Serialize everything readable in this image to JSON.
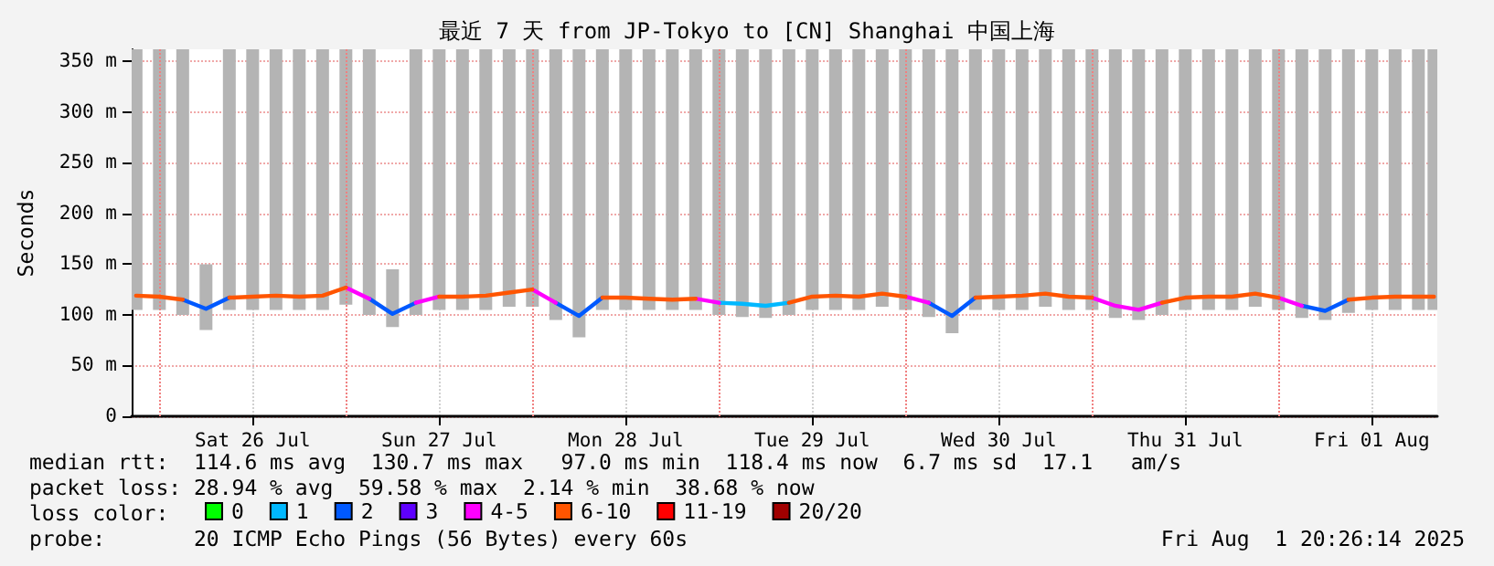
{
  "chart_data": {
    "type": "line",
    "title": "最近 7 天 from JP-Tokyo to [CN] Shanghai 中国上海",
    "ylabel": "Seconds",
    "legend_title": "loss color:",
    "legend": "bottom",
    "grid": true,
    "marker": "none",
    "line_style": "solid",
    "xlim": [
      "2025-07-25T20:26",
      "2025-08-01T20:26"
    ],
    "xticks": [
      {
        "value": "2025-07-26T12:00",
        "label": "Sat 26 Jul"
      },
      {
        "value": "2025-07-27T12:00",
        "label": "Sun 27 Jul"
      },
      {
        "value": "2025-07-28T12:00",
        "label": "Mon 28 Jul"
      },
      {
        "value": "2025-07-29T12:00",
        "label": "Tue 29 Jul"
      },
      {
        "value": "2025-07-30T12:00",
        "label": "Wed 30 Jul"
      },
      {
        "value": "2025-07-31T12:00",
        "label": "Thu 31 Jul"
      },
      {
        "value": "2025-08-01T12:00",
        "label": "Fri 01 Aug"
      }
    ],
    "ylim": [
      0,
      362
    ],
    "yticks": [
      0,
      {
        "value": 50,
        "label": "50 m"
      },
      {
        "value": 100,
        "label": "100 m"
      },
      {
        "value": 150,
        "label": "150 m"
      },
      {
        "value": 200,
        "label": "200 m"
      },
      {
        "value": 250,
        "label": "250 m"
      },
      {
        "value": 300,
        "label": "300 m"
      },
      {
        "value": 350,
        "label": "350 m"
      }
    ],
    "ref_lines": [
      {
        "axis": "x",
        "value": "2025-07-26T00:00",
        "color": "#f08080",
        "line_style": "dotted"
      },
      {
        "axis": "x",
        "value": "2025-07-27T00:00",
        "color": "#f08080",
        "line_style": "dotted"
      },
      {
        "axis": "x",
        "value": "2025-07-28T00:00",
        "color": "#f08080",
        "line_style": "dotted"
      },
      {
        "axis": "x",
        "value": "2025-07-29T00:00",
        "color": "#f08080",
        "line_style": "dotted"
      },
      {
        "axis": "x",
        "value": "2025-07-30T00:00",
        "color": "#f08080",
        "line_style": "dotted"
      },
      {
        "axis": "x",
        "value": "2025-07-31T00:00",
        "color": "#f08080",
        "line_style": "dotted"
      },
      {
        "axis": "x",
        "value": "2025-08-01T00:00",
        "color": "#f08080",
        "line_style": "dotted"
      }
    ],
    "annotations": [
      "median rtt:  114.6 ms avg  130.7 ms max   97.0 ms min  118.4 ms now  6.7 ms sd  17.1   am/s",
      "packet loss: 28.94 % avg  59.58 % max  2.14 % min  38.68 % now",
      "probe:       20 ICMP Echo Pings (56 Bytes) every 60s",
      "Fri Aug  1 20:26:14 2025"
    ],
    "x": [
      "2025-07-25T21:00",
      "2025-07-26T00:00",
      "2025-07-26T03:00",
      "2025-07-26T06:00",
      "2025-07-26T09:00",
      "2025-07-26T12:00",
      "2025-07-26T15:00",
      "2025-07-26T18:00",
      "2025-07-26T21:00",
      "2025-07-27T00:00",
      "2025-07-27T03:00",
      "2025-07-27T06:00",
      "2025-07-27T09:00",
      "2025-07-27T12:00",
      "2025-07-27T15:00",
      "2025-07-27T18:00",
      "2025-07-27T21:00",
      "2025-07-28T00:00",
      "2025-07-28T03:00",
      "2025-07-28T06:00",
      "2025-07-28T09:00",
      "2025-07-28T12:00",
      "2025-07-28T15:00",
      "2025-07-28T18:00",
      "2025-07-28T21:00",
      "2025-07-29T00:00",
      "2025-07-29T03:00",
      "2025-07-29T06:00",
      "2025-07-29T09:00",
      "2025-07-29T12:00",
      "2025-07-29T15:00",
      "2025-07-29T18:00",
      "2025-07-29T21:00",
      "2025-07-30T00:00",
      "2025-07-30T03:00",
      "2025-07-30T06:00",
      "2025-07-30T09:00",
      "2025-07-30T12:00",
      "2025-07-30T15:00",
      "2025-07-30T18:00",
      "2025-07-30T21:00",
      "2025-07-31T00:00",
      "2025-07-31T03:00",
      "2025-07-31T06:00",
      "2025-07-31T09:00",
      "2025-07-31T12:00",
      "2025-07-31T15:00",
      "2025-07-31T18:00",
      "2025-07-31T21:00",
      "2025-08-01T00:00",
      "2025-08-01T03:00",
      "2025-08-01T06:00",
      "2025-08-01T09:00",
      "2025-08-01T12:00",
      "2025-08-01T15:00",
      "2025-08-01T18:00",
      "2025-08-01T20:00"
    ],
    "series": [
      {
        "type": "bar",
        "color": "#b4b4b4",
        "base": [
          105,
          105,
          100,
          85,
          105,
          105,
          105,
          105,
          105,
          110,
          100,
          88,
          100,
          105,
          105,
          105,
          108,
          108,
          95,
          78,
          105,
          105,
          105,
          105,
          105,
          100,
          98,
          97,
          100,
          105,
          105,
          105,
          108,
          105,
          98,
          82,
          105,
          105,
          105,
          108,
          105,
          105,
          97,
          95,
          100,
          105,
          105,
          105,
          108,
          105,
          97,
          95,
          102,
          105,
          105,
          105,
          105
        ],
        "values": [
          257,
          257,
          262,
          65,
          257,
          257,
          257,
          257,
          257,
          252,
          262,
          57,
          262,
          257,
          257,
          257,
          254,
          254,
          267,
          284,
          257,
          257,
          257,
          257,
          257,
          262,
          264,
          265,
          262,
          257,
          257,
          257,
          254,
          257,
          264,
          280,
          257,
          257,
          257,
          254,
          257,
          257,
          265,
          267,
          262,
          257,
          257,
          257,
          254,
          257,
          265,
          267,
          260,
          257,
          257,
          257,
          257
        ]
      },
      {
        "name": "0",
        "color": "#00ff00",
        "values": [
          null,
          null,
          null,
          null,
          null,
          null,
          null,
          null,
          null,
          null,
          null,
          null,
          null,
          null,
          null,
          null,
          null,
          null,
          null,
          null,
          null,
          null,
          null,
          null,
          null,
          null,
          null,
          null,
          null,
          null,
          null,
          null,
          null,
          null,
          null,
          null,
          null,
          null,
          null,
          null,
          null,
          null,
          null,
          null,
          null,
          null,
          null,
          null,
          null,
          null,
          null,
          null,
          null,
          null,
          null,
          null,
          null
        ]
      },
      {
        "name": "1",
        "color": "#00b8ff",
        "values": [
          null,
          null,
          null,
          null,
          null,
          null,
          null,
          null,
          null,
          null,
          null,
          null,
          null,
          null,
          null,
          null,
          null,
          null,
          null,
          null,
          null,
          null,
          null,
          null,
          null,
          112,
          111,
          109,
          112,
          null,
          null,
          null,
          null,
          null,
          null,
          null,
          null,
          null,
          null,
          null,
          null,
          null,
          null,
          null,
          null,
          null,
          null,
          null,
          null,
          null,
          null,
          null,
          null,
          null,
          null,
          null,
          null
        ]
      },
      {
        "name": "2",
        "color": "#0059ff",
        "values": [
          null,
          null,
          115,
          106,
          117,
          null,
          null,
          null,
          null,
          null,
          116,
          101,
          112,
          null,
          null,
          null,
          null,
          null,
          112,
          99,
          117,
          null,
          null,
          null,
          null,
          null,
          null,
          null,
          null,
          null,
          null,
          null,
          null,
          null,
          112,
          99,
          117,
          null,
          null,
          null,
          null,
          null,
          null,
          null,
          null,
          null,
          null,
          null,
          null,
          null,
          109,
          104,
          115,
          null,
          null,
          null,
          null
        ]
      },
      {
        "name": "3",
        "color": "#5e00ff",
        "values": [
          null,
          null,
          null,
          null,
          null,
          null,
          null,
          null,
          null,
          null,
          null,
          null,
          null,
          null,
          null,
          null,
          null,
          null,
          null,
          null,
          null,
          null,
          null,
          null,
          null,
          null,
          null,
          null,
          null,
          null,
          null,
          null,
          null,
          null,
          null,
          null,
          null,
          null,
          null,
          null,
          null,
          null,
          null,
          null,
          null,
          null,
          null,
          null,
          null,
          null,
          null,
          null,
          null,
          null,
          null,
          null,
          null
        ]
      },
      {
        "name": "4-5",
        "color": "#ff00fe",
        "values": [
          null,
          null,
          null,
          null,
          null,
          null,
          null,
          null,
          null,
          127,
          116,
          null,
          112,
          118,
          null,
          null,
          null,
          125,
          112,
          null,
          null,
          null,
          null,
          null,
          116,
          112,
          null,
          null,
          null,
          null,
          null,
          null,
          null,
          118,
          112,
          null,
          null,
          null,
          null,
          null,
          null,
          117,
          109,
          105,
          112,
          null,
          null,
          null,
          null,
          117,
          109,
          null,
          null,
          null,
          null,
          null,
          null
        ]
      },
      {
        "name": "6-10",
        "color": "#ff5500",
        "values": [
          119,
          118,
          115,
          null,
          117,
          118,
          119,
          118,
          119,
          127,
          null,
          null,
          null,
          118,
          118,
          119,
          122,
          125,
          null,
          null,
          117,
          117,
          116,
          115,
          116,
          null,
          null,
          null,
          112,
          118,
          119,
          118,
          121,
          118,
          null,
          null,
          117,
          118,
          119,
          121,
          118,
          117,
          null,
          null,
          112,
          117,
          118,
          118,
          121,
          117,
          null,
          null,
          115,
          117,
          118,
          118,
          118
        ]
      },
      {
        "name": "11-19",
        "color": "#ff0000",
        "values": [
          null,
          null,
          null,
          null,
          null,
          null,
          null,
          null,
          null,
          null,
          null,
          null,
          null,
          null,
          null,
          null,
          null,
          null,
          null,
          null,
          null,
          null,
          null,
          null,
          null,
          null,
          null,
          null,
          null,
          null,
          null,
          null,
          null,
          null,
          null,
          null,
          null,
          null,
          null,
          null,
          null,
          null,
          null,
          null,
          null,
          null,
          null,
          null,
          null,
          null,
          null,
          null,
          null,
          null,
          null,
          null,
          null
        ]
      },
      {
        "name": "20/20",
        "color": "#a10000",
        "values": [
          null,
          null,
          null,
          null,
          null,
          null,
          null,
          null,
          null,
          null,
          null,
          null,
          null,
          null,
          null,
          null,
          null,
          null,
          null,
          null,
          null,
          null,
          null,
          null,
          null,
          null,
          null,
          null,
          null,
          null,
          null,
          null,
          null,
          null,
          null,
          null,
          null,
          null,
          null,
          null,
          null,
          null,
          null,
          null,
          null,
          null,
          null,
          null,
          null,
          null,
          null,
          null,
          null,
          null,
          null,
          null,
          null
        ]
      }
    ]
  }
}
